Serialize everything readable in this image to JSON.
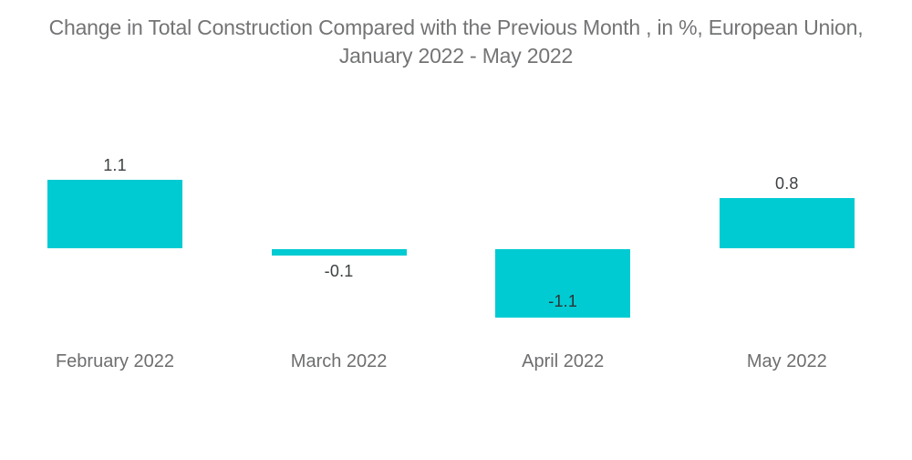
{
  "chart_data": {
    "type": "bar",
    "title": "Change in Total Construction Compared with the Previous Month , in %, European Union, January 2022 - May 2022",
    "title_lines": [
      "Change in Total Construction Compared with the Previous Month , in %, European Union,",
      "January 2022 - May 2022"
    ],
    "categories": [
      "February 2022",
      "March 2022",
      "April 2022",
      "May 2022"
    ],
    "values": [
      1.1,
      -0.1,
      -1.1,
      0.8
    ],
    "value_labels": [
      "1.1",
      "-0.1",
      "-1.1",
      "0.8"
    ],
    "bar_color": "#00cbd2",
    "title_color": "#737476",
    "xlabel": "",
    "ylabel": "",
    "ylim": [
      -1.5,
      1.5
    ],
    "grid": false,
    "legend": null,
    "baseline_value": 0
  }
}
